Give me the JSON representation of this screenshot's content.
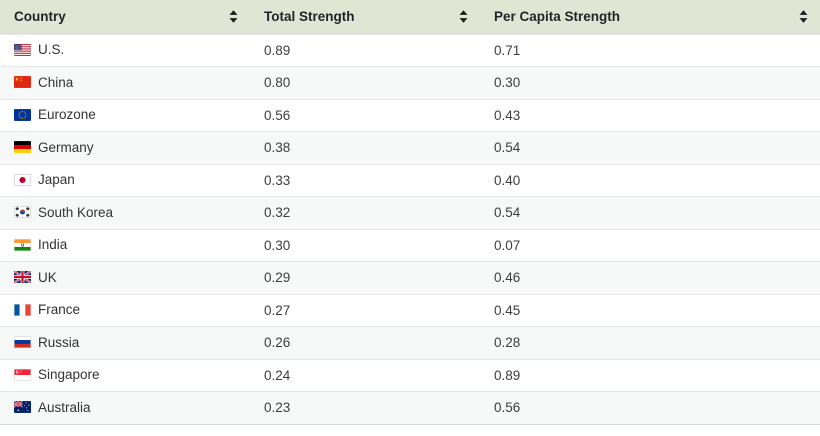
{
  "table": {
    "columns": [
      {
        "label": "Country",
        "sort_icon": "sort-both-icon"
      },
      {
        "label": "Total Strength",
        "sort_icon": "sort-both-icon"
      },
      {
        "label": "Per Capita Strength",
        "sort_icon": "sort-both-icon"
      }
    ],
    "rows": [
      {
        "flag": "us",
        "country": "U.S.",
        "total_strength": "0.89",
        "per_capita_strength": "0.71"
      },
      {
        "flag": "cn",
        "country": "China",
        "total_strength": "0.80",
        "per_capita_strength": "0.30"
      },
      {
        "flag": "eu",
        "country": "Eurozone",
        "total_strength": "0.56",
        "per_capita_strength": "0.43"
      },
      {
        "flag": "de",
        "country": "Germany",
        "total_strength": "0.38",
        "per_capita_strength": "0.54"
      },
      {
        "flag": "jp",
        "country": "Japan",
        "total_strength": "0.33",
        "per_capita_strength": "0.40"
      },
      {
        "flag": "kr",
        "country": "South Korea",
        "total_strength": "0.32",
        "per_capita_strength": "0.54"
      },
      {
        "flag": "in",
        "country": "India",
        "total_strength": "0.30",
        "per_capita_strength": "0.07"
      },
      {
        "flag": "gb",
        "country": "UK",
        "total_strength": "0.29",
        "per_capita_strength": "0.46"
      },
      {
        "flag": "fr",
        "country": "France",
        "total_strength": "0.27",
        "per_capita_strength": "0.45"
      },
      {
        "flag": "ru",
        "country": "Russia",
        "total_strength": "0.26",
        "per_capita_strength": "0.28"
      },
      {
        "flag": "sg",
        "country": "Singapore",
        "total_strength": "0.24",
        "per_capita_strength": "0.89"
      },
      {
        "flag": "au",
        "country": "Australia",
        "total_strength": "0.23",
        "per_capita_strength": "0.56"
      }
    ]
  },
  "colors": {
    "header_bg": "#dfe7d4",
    "header_text": "#212529",
    "body_text": "#3d3d3d",
    "row_alt_bg": "#f7f8f8",
    "row_border": "#e6e6e6"
  },
  "chart_data": {
    "type": "table",
    "title": "",
    "columns": [
      "Country",
      "Total Strength",
      "Per Capita Strength"
    ],
    "rows": [
      [
        "U.S.",
        0.89,
        0.71
      ],
      [
        "China",
        0.8,
        0.3
      ],
      [
        "Eurozone",
        0.56,
        0.43
      ],
      [
        "Germany",
        0.38,
        0.54
      ],
      [
        "Japan",
        0.33,
        0.4
      ],
      [
        "South Korea",
        0.32,
        0.54
      ],
      [
        "India",
        0.3,
        0.07
      ],
      [
        "UK",
        0.29,
        0.46
      ],
      [
        "France",
        0.27,
        0.45
      ],
      [
        "Russia",
        0.26,
        0.28
      ],
      [
        "Singapore",
        0.24,
        0.89
      ],
      [
        "Australia",
        0.23,
        0.56
      ]
    ]
  }
}
